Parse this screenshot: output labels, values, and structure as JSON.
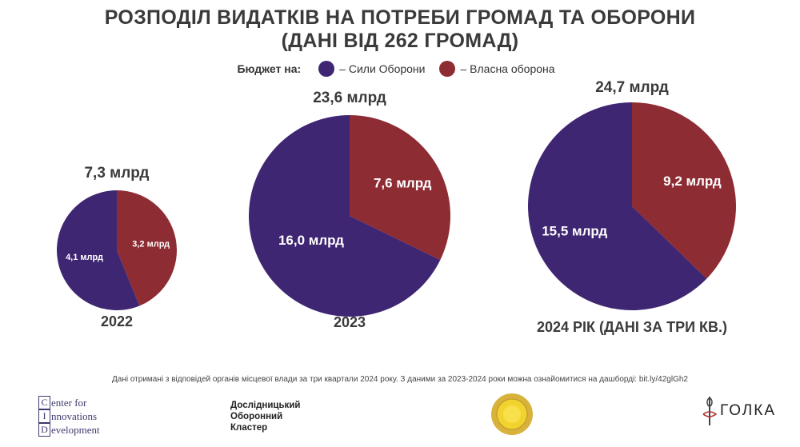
{
  "title": {
    "line1": "РОЗПОДІЛ ВИДАТКІВ НА ПОТРЕБИ ГРОМАД ТА ОБОРОНИ",
    "line2": "(ДАНІ ВІД 262 ГРОМАД)"
  },
  "legend": {
    "label": "Бюджет на:",
    "items": [
      {
        "text": "– Сили Оборони",
        "color": "#3f2672"
      },
      {
        "text": "– Власна оборона",
        "color": "#8e2c34"
      }
    ]
  },
  "chart_data": {
    "type": "pie",
    "series_names": [
      "Сили Оборони",
      "Власна оборона"
    ],
    "colors": [
      "#3f2672",
      "#8e2c34"
    ],
    "charts": [
      {
        "label": "2022",
        "total": 7.3,
        "total_label": "7,3 млрд",
        "slices": [
          {
            "name": "Сили Оборони",
            "value": 4.1,
            "label": "4,1 млрд"
          },
          {
            "name": "Власна оборона",
            "value": 3.2,
            "label": "3,2 млрд"
          }
        ]
      },
      {
        "label": "2023",
        "total": 23.6,
        "total_label": "23,6 млрд",
        "slices": [
          {
            "name": "Сили Оборони",
            "value": 16.0,
            "label": "16,0 млрд"
          },
          {
            "name": "Власна оборона",
            "value": 7.6,
            "label": "7,6 млрд"
          }
        ]
      },
      {
        "label": "2024 РІК (ДАНІ ЗА ТРИ КВ.)",
        "total": 24.7,
        "total_label": "24,7 млрд",
        "slices": [
          {
            "name": "Сили Оборони",
            "value": 15.5,
            "label": "15,5 млрд"
          },
          {
            "name": "Власна оборона",
            "value": 9.2,
            "label": "9,2 млрд"
          }
        ]
      }
    ]
  },
  "footnote": "Дані отримані з відповідей органів місцевої влади за три квартали 2024 року. З даними за 2023-2024 роки можна ознайомитися на дашборді: bit.ly/42glGh2",
  "logos": {
    "cid": {
      "letters": [
        "C",
        "I",
        "D"
      ],
      "rest": [
        "enter for",
        "nnovations",
        "evelopment"
      ]
    },
    "dok": [
      "Дослідницький",
      "Оборонний",
      "Кластер"
    ],
    "golka": "ГОЛКА"
  }
}
